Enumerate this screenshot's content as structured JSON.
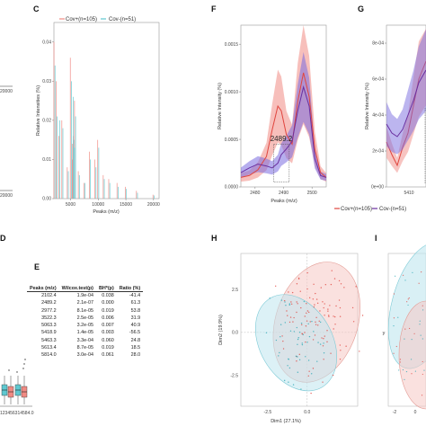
{
  "panels": {
    "c": {
      "label": "C"
    },
    "d": {
      "label": "D"
    },
    "e": {
      "label": "E"
    },
    "f": {
      "label": "F"
    },
    "g": {
      "label": "G"
    },
    "h": {
      "label": "H"
    },
    "i": {
      "label": "I"
    }
  },
  "legend": {
    "cov_pos": "Cov+(n=105)",
    "cov_neg": "Cov-(n=51)"
  },
  "colors": {
    "cov_pos": "#f08a83",
    "cov_neg": "#5fc8d0",
    "cov_pos_line": "#e0453e",
    "cov_neg_line": "#6a2fa0"
  },
  "fragments": {
    "a_tick_1": "20000",
    "a_tick_2": "20000",
    "d_xticks": "123456314584.0"
  },
  "chart_data": [
    {
      "type": "line",
      "panel": "C",
      "xlabel": "Peaks (m/z)",
      "ylabel": "Relative Intensities (%)",
      "xlim": [
        2000,
        21000
      ],
      "ylim": [
        0,
        0.045
      ],
      "x_ticks": [
        "5000",
        "10000",
        "15000",
        "20000"
      ],
      "y_ticks": [
        "0.00",
        "0.01",
        "0.02",
        "0.03",
        "0.04"
      ],
      "series": [
        {
          "name": "Cov+(n=105)",
          "x": [
            2100,
            2489,
            2977,
            3522,
            4500,
            5063,
            5418,
            5463,
            5613,
            5814,
            6500,
            7500,
            8500,
            9500,
            10000,
            11000,
            12000,
            13500,
            15000,
            17000,
            20000
          ],
          "values": [
            0.04,
            0.03,
            0.016,
            0.02,
            0.008,
            0.036,
            0.01,
            0.014,
            0.016,
            0.025,
            0.007,
            0.004,
            0.012,
            0.01,
            0.015,
            0.006,
            0.005,
            0.004,
            0.003,
            0.002,
            0.001
          ]
        },
        {
          "name": "Cov-(n=51)",
          "x": [
            2100,
            2489,
            2977,
            3522,
            4500,
            5063,
            5418,
            5463,
            5613,
            5814,
            6500,
            7500,
            8500,
            9500,
            10000,
            11000,
            12000,
            13500,
            15000,
            17000,
            20000
          ],
          "values": [
            0.034,
            0.021,
            0.02,
            0.018,
            0.007,
            0.03,
            0.026,
            0.015,
            0.013,
            0.021,
            0.006,
            0.004,
            0.01,
            0.008,
            0.013,
            0.005,
            0.004,
            0.003,
            0.0025,
            0.0015,
            0.0008
          ]
        }
      ]
    },
    {
      "type": "line",
      "panel": "F",
      "xlabel": "Peaks (m/z)",
      "ylabel": "Relative Intensity (%)",
      "xlim": [
        2475,
        2505
      ],
      "ylim": [
        0,
        0.0017
      ],
      "x_ticks": [
        "2480",
        "2490",
        "2500"
      ],
      "y_ticks": [
        "0.0000",
        "0.0005",
        "0.0010",
        "0.0015"
      ],
      "annotation": "2489.2",
      "series": [
        {
          "name": "Cov+(n=105)",
          "x": [
            2475,
            2478,
            2481,
            2484,
            2486,
            2488,
            2489.2,
            2491,
            2493,
            2495,
            2497,
            2499,
            2501,
            2503,
            2505
          ],
          "values": [
            0.0001,
            0.00012,
            0.00018,
            0.00032,
            0.0006,
            0.00085,
            0.0008,
            0.00055,
            0.00045,
            0.0009,
            0.0012,
            0.00095,
            0.0004,
            0.00015,
            0.0001
          ]
        },
        {
          "name": "Cov-(n=51)",
          "x": [
            2475,
            2478,
            2481,
            2484,
            2486,
            2488,
            2489.2,
            2491,
            2493,
            2495,
            2497,
            2499,
            2501,
            2503,
            2505
          ],
          "values": [
            0.00015,
            0.0002,
            0.00024,
            0.00022,
            0.0002,
            0.00025,
            0.00034,
            0.0004,
            0.00048,
            0.0008,
            0.00105,
            0.00085,
            0.0003,
            0.00012,
            0.0001
          ]
        }
      ]
    },
    {
      "type": "line",
      "panel": "G",
      "ylabel": "Relative Intensity (%)",
      "ylim": [
        0,
        0.0009
      ],
      "x_ticks": [
        "5410"
      ],
      "y_ticks": [
        "0e+00",
        "2e-04",
        "4e-04",
        "6e-04",
        "8e-04"
      ]
    },
    {
      "type": "table",
      "panel": "E",
      "columns": [
        "Peaks (m/z)",
        "Wilcox.test(p)",
        "BH*(p)",
        "Ratio (%)"
      ],
      "rows": [
        [
          "2102.4",
          "1.9e-04",
          "0.038",
          "-41.4"
        ],
        [
          "2489.2",
          "2.1e-07",
          "0.000",
          "61.3"
        ],
        [
          "2977.2",
          "8.1e-05",
          "0.019",
          "53.8"
        ],
        [
          "3522.3",
          "2.5e-05",
          "0.006",
          "31.9"
        ],
        [
          "5063.3",
          "3.2e-05",
          "0.007",
          "40.9"
        ],
        [
          "5418.9",
          "1.4e-05",
          "0.003",
          "-56.5"
        ],
        [
          "5463.3",
          "3.3e-04",
          "0.060",
          "24.8"
        ],
        [
          "5613.4",
          "8.7e-05",
          "0.019",
          "18.5"
        ],
        [
          "5814.0",
          "3.0e-04",
          "0.061",
          "28.0"
        ]
      ]
    },
    {
      "type": "scatter",
      "panel": "H",
      "xlabel": "Dim1 (27.1%)",
      "ylabel": "Dim2 (19.9%)",
      "xlim": [
        -4.2,
        3.2
      ],
      "ylim": [
        -4.3,
        4.6
      ],
      "x_ticks": [
        "-2.5",
        "0.0"
      ],
      "y_ticks": [
        "-2.5",
        "0.0",
        "2.5"
      ],
      "ellipses": [
        {
          "name": "Cov+(n=105)",
          "cx": 0.6,
          "cy": 0.6,
          "rx": 2.6,
          "ry": 3.6,
          "angle": 18
        },
        {
          "name": "Cov-(n=51)",
          "cx": -0.7,
          "cy": -0.6,
          "rx": 2.3,
          "ry": 3.0,
          "angle": -30
        }
      ]
    },
    {
      "type": "scatter",
      "panel": "I",
      "ylabel": "y",
      "x_ticks": [
        "-2",
        "0"
      ]
    }
  ]
}
